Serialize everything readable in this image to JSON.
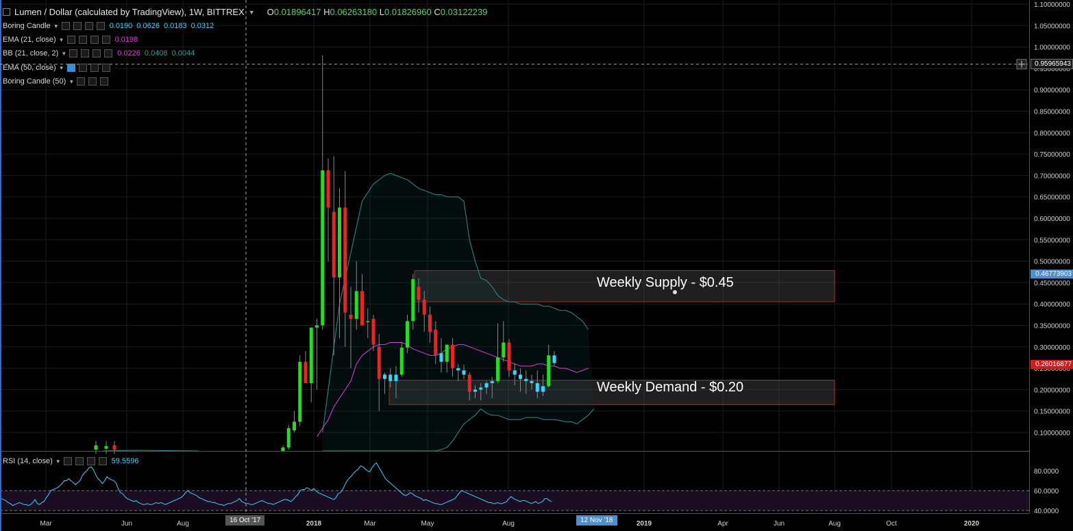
{
  "header": {
    "symbol": "Lumen / Dollar (calculated by TradingView), 1W, BITTREX",
    "open_label": "O",
    "open": "0.01896417",
    "high_label": "H",
    "high": "0.06263180",
    "low_label": "L",
    "low": "0.01826960",
    "close_label": "C",
    "close": "0.03122239"
  },
  "indicators": [
    {
      "name": "Boring Candle",
      "values": [
        "0.0190",
        "0.0626",
        "0.0183",
        "0.0312"
      ],
      "color": "#33d6ff"
    },
    {
      "name": "EMA (21, close)",
      "values": [
        "0.0198"
      ],
      "color": "#e03be0"
    },
    {
      "name": "BB (21, close, 2)",
      "values": [
        "0.0226",
        "0.0408",
        "0.0044"
      ],
      "colors": [
        "#e03be0",
        "#2f8f8f",
        "#2f8f8f"
      ]
    },
    {
      "name": "EMA (50, close)",
      "values": []
    },
    {
      "name": "Boring Candle (50)",
      "values": []
    }
  ],
  "rsi": {
    "name": "RSI (14, close)",
    "value": "59.5596",
    "color": "#33d6ff"
  },
  "zones": {
    "supply_label": "Weekly Supply - $0.45",
    "demand_label": "Weekly Demand - $0.20"
  },
  "price_tags": {
    "crosshair": "0.95965943",
    "blue": "0.46773903",
    "red": "0.26016877"
  },
  "date_tags": {
    "crosshair": "16 Oct '17",
    "current": "12 Nov '18"
  },
  "colors": {
    "up": "#22dd22",
    "down": "#ee2222",
    "boring": "#33d6ff",
    "ema": "#e03be0",
    "bb": "#2f8f8f",
    "rsi": "#33d6ff"
  },
  "chart_data": {
    "type": "candlestick",
    "title": "Lumen / Dollar (calculated by TradingView), 1W, BITTREX",
    "y_ticks": [
      "1.10000000",
      "1.05000000",
      "1.00000000",
      "0.95000000",
      "0.90000000",
      "0.85000000",
      "0.80000000",
      "0.75000000",
      "0.70000000",
      "0.65000000",
      "0.60000000",
      "0.55000000",
      "0.50000000",
      "0.45000000",
      "0.40000000",
      "0.35000000",
      "0.30000000",
      "0.25000000",
      "0.20000000",
      "0.15000000",
      "0.10000000"
    ],
    "ylim": [
      0.045,
      1.105
    ],
    "x_ticks": [
      "Mar",
      "Jun",
      "Aug",
      "2018",
      "Mar",
      "May",
      "Aug",
      "2019",
      "Apr",
      "Jun",
      "Aug",
      "Oct",
      "2020"
    ],
    "rsi_ticks": [
      "80.0000",
      "60.0000",
      "40.0000"
    ],
    "rsi_ylim": [
      34,
      96
    ],
    "rsi_band": [
      40,
      60
    ],
    "supply_zone": [
      0.405,
      0.478
    ],
    "demand_zone": [
      0.165,
      0.222
    ],
    "candles": [
      {
        "o": 0.045,
        "h": 0.07,
        "l": 0.04,
        "c": 0.065
      },
      {
        "o": 0.065,
        "h": 0.118,
        "l": 0.06,
        "c": 0.11
      },
      {
        "o": 0.105,
        "h": 0.15,
        "l": 0.1,
        "c": 0.125
      },
      {
        "o": 0.125,
        "h": 0.28,
        "l": 0.115,
        "c": 0.265
      },
      {
        "o": 0.265,
        "h": 0.29,
        "l": 0.215,
        "c": 0.215
      },
      {
        "o": 0.215,
        "h": 0.34,
        "l": 0.17,
        "c": 0.345
      },
      {
        "o": 0.345,
        "h": 0.365,
        "l": 0.2,
        "c": 0.35
      },
      {
        "o": 0.35,
        "h": 0.98,
        "l": 0.34,
        "c": 0.712
      },
      {
        "o": 0.712,
        "h": 0.74,
        "l": 0.5,
        "c": 0.625
      },
      {
        "o": 0.615,
        "h": 0.745,
        "l": 0.28,
        "c": 0.462
      },
      {
        "o": 0.462,
        "h": 0.67,
        "l": 0.32,
        "c": 0.625
      },
      {
        "o": 0.625,
        "h": 0.71,
        "l": 0.3,
        "c": 0.38
      },
      {
        "o": 0.375,
        "h": 0.44,
        "l": 0.25,
        "c": 0.365
      },
      {
        "o": 0.365,
        "h": 0.5,
        "l": 0.34,
        "c": 0.43
      },
      {
        "o": 0.43,
        "h": 0.47,
        "l": 0.36,
        "c": 0.35
      },
      {
        "o": 0.36,
        "h": 0.39,
        "l": 0.32,
        "c": 0.36
      },
      {
        "o": 0.365,
        "h": 0.375,
        "l": 0.29,
        "c": 0.305
      },
      {
        "o": 0.3,
        "h": 0.33,
        "l": 0.15,
        "c": 0.225
      },
      {
        "o": 0.225,
        "h": 0.24,
        "l": 0.19,
        "c": 0.235
      },
      {
        "o": 0.235,
        "h": 0.25,
        "l": 0.205,
        "c": 0.22
      },
      {
        "o": 0.22,
        "h": 0.255,
        "l": 0.18,
        "c": 0.235
      },
      {
        "o": 0.235,
        "h": 0.31,
        "l": 0.23,
        "c": 0.298
      },
      {
        "o": 0.298,
        "h": 0.375,
        "l": 0.285,
        "c": 0.36
      },
      {
        "o": 0.36,
        "h": 0.47,
        "l": 0.34,
        "c": 0.458
      },
      {
        "o": 0.44,
        "h": 0.46,
        "l": 0.38,
        "c": 0.41
      },
      {
        "o": 0.41,
        "h": 0.43,
        "l": 0.335,
        "c": 0.375
      },
      {
        "o": 0.375,
        "h": 0.395,
        "l": 0.31,
        "c": 0.335
      },
      {
        "o": 0.34,
        "h": 0.36,
        "l": 0.26,
        "c": 0.28
      },
      {
        "o": 0.285,
        "h": 0.32,
        "l": 0.24,
        "c": 0.265
      },
      {
        "o": 0.265,
        "h": 0.3,
        "l": 0.24,
        "c": 0.305
      },
      {
        "o": 0.305,
        "h": 0.32,
        "l": 0.23,
        "c": 0.25
      },
      {
        "o": 0.25,
        "h": 0.26,
        "l": 0.22,
        "c": 0.245
      },
      {
        "o": 0.245,
        "h": 0.258,
        "l": 0.225,
        "c": 0.235
      },
      {
        "o": 0.235,
        "h": 0.24,
        "l": 0.175,
        "c": 0.195
      },
      {
        "o": 0.195,
        "h": 0.21,
        "l": 0.18,
        "c": 0.2
      },
      {
        "o": 0.2,
        "h": 0.215,
        "l": 0.175,
        "c": 0.205
      },
      {
        "o": 0.205,
        "h": 0.22,
        "l": 0.19,
        "c": 0.215
      },
      {
        "o": 0.215,
        "h": 0.23,
        "l": 0.18,
        "c": 0.22
      },
      {
        "o": 0.22,
        "h": 0.355,
        "l": 0.215,
        "c": 0.275
      },
      {
        "o": 0.275,
        "h": 0.36,
        "l": 0.265,
        "c": 0.31
      },
      {
        "o": 0.31,
        "h": 0.318,
        "l": 0.23,
        "c": 0.245
      },
      {
        "o": 0.245,
        "h": 0.262,
        "l": 0.21,
        "c": 0.235
      },
      {
        "o": 0.235,
        "h": 0.25,
        "l": 0.195,
        "c": 0.225
      },
      {
        "o": 0.225,
        "h": 0.245,
        "l": 0.19,
        "c": 0.22
      },
      {
        "o": 0.22,
        "h": 0.235,
        "l": 0.2,
        "c": 0.215
      },
      {
        "o": 0.215,
        "h": 0.245,
        "l": 0.18,
        "c": 0.195
      },
      {
        "o": 0.195,
        "h": 0.235,
        "l": 0.185,
        "c": 0.208
      },
      {
        "o": 0.208,
        "h": 0.305,
        "l": 0.205,
        "c": 0.28
      },
      {
        "o": 0.28,
        "h": 0.29,
        "l": 0.255,
        "c": 0.262
      }
    ],
    "ema21": [
      0.09,
      0.11,
      0.13,
      0.16,
      0.18,
      0.2,
      0.22,
      0.26,
      0.28,
      0.29,
      0.3,
      0.305,
      0.305,
      0.31,
      0.31,
      0.31,
      0.305,
      0.295,
      0.29,
      0.285,
      0.28,
      0.28,
      0.285,
      0.295,
      0.3,
      0.305,
      0.305,
      0.3,
      0.295,
      0.29,
      0.285,
      0.28,
      0.275,
      0.27,
      0.265,
      0.26,
      0.255,
      0.255,
      0.255,
      0.26,
      0.26,
      0.255,
      0.255,
      0.25,
      0.25,
      0.245,
      0.24,
      0.245,
      0.25
    ],
    "bb_upper": [
      0.1,
      0.2,
      0.3,
      0.4,
      0.46,
      0.52,
      0.58,
      0.64,
      0.66,
      0.68,
      0.69,
      0.7,
      0.705,
      0.7,
      0.695,
      0.69,
      0.68,
      0.67,
      0.665,
      0.66,
      0.655,
      0.655,
      0.65,
      0.65,
      0.65,
      0.64,
      0.55,
      0.5,
      0.46,
      0.455,
      0.44,
      0.42,
      0.41,
      0.405,
      0.405,
      0.4,
      0.4,
      0.4,
      0.4,
      0.395,
      0.395,
      0.39,
      0.385,
      0.385,
      0.38,
      0.37,
      0.36,
      0.34
    ],
    "bb_lower": [
      -0.3,
      -0.3,
      -0.25,
      -0.2,
      -0.15,
      -0.12,
      -0.1,
      -0.08,
      -0.06,
      -0.05,
      -0.03,
      0.0,
      0.01,
      0.02,
      0.03,
      0.035,
      0.04,
      0.045,
      0.05,
      0.05,
      0.055,
      0.06,
      0.065,
      0.08,
      0.1,
      0.12,
      0.13,
      0.14,
      0.155,
      0.145,
      0.14,
      0.14,
      0.135,
      0.13,
      0.13,
      0.13,
      0.135,
      0.135,
      0.135,
      0.13,
      0.13,
      0.13,
      0.128,
      0.125,
      0.125,
      0.12,
      0.13,
      0.14,
      0.155
    ],
    "rsi_values": [
      52,
      51,
      50,
      48,
      47,
      45,
      46,
      47,
      48,
      47,
      46,
      46,
      45,
      46,
      48,
      51,
      47,
      46,
      48,
      49,
      53,
      56,
      60,
      61,
      62,
      63,
      65,
      67,
      70,
      70,
      72,
      70,
      68,
      66,
      68,
      70,
      75,
      78,
      80,
      83,
      84,
      81,
      76,
      72,
      70,
      67,
      70,
      74,
      72,
      71,
      70,
      68,
      62,
      58,
      57,
      54,
      52,
      51,
      50,
      49,
      50,
      48,
      47,
      46,
      46,
      47,
      46,
      46,
      47,
      48,
      47,
      48,
      47,
      46,
      47,
      48,
      49,
      50,
      51,
      52,
      53,
      55,
      58,
      60,
      58,
      57,
      56,
      55,
      53,
      52,
      51,
      50,
      49,
      49,
      48,
      48,
      47,
      46,
      46,
      45,
      46,
      47,
      47,
      48,
      49,
      50,
      52,
      49,
      48,
      47,
      47,
      46,
      46,
      47,
      48,
      49,
      50,
      49,
      48,
      47,
      47,
      46,
      47,
      48,
      49,
      50,
      51,
      51,
      50,
      49,
      51,
      54,
      56,
      60,
      61,
      61,
      63,
      62,
      60,
      62,
      60,
      58,
      57,
      56,
      55,
      54,
      53,
      52,
      51,
      53,
      57,
      58,
      61,
      66,
      70,
      73,
      75,
      78,
      80,
      82,
      85,
      84,
      82,
      80,
      79,
      83,
      86,
      88,
      84,
      80,
      76,
      72,
      70,
      68,
      66,
      64,
      62,
      60,
      58,
      56,
      55,
      56,
      58,
      57,
      55,
      54,
      53,
      52,
      50,
      51,
      50,
      49,
      48,
      47,
      47,
      46,
      46,
      47,
      48,
      49,
      50,
      51,
      52,
      55,
      58,
      60,
      59,
      58,
      57,
      56,
      55,
      54,
      53,
      52,
      51,
      50,
      49,
      48,
      48,
      47,
      47,
      48,
      47,
      47,
      48,
      49,
      52,
      54,
      52,
      51,
      50,
      49,
      50,
      50,
      49,
      48,
      47,
      48,
      49,
      47,
      48,
      49,
      52,
      52,
      50,
      49
    ]
  }
}
